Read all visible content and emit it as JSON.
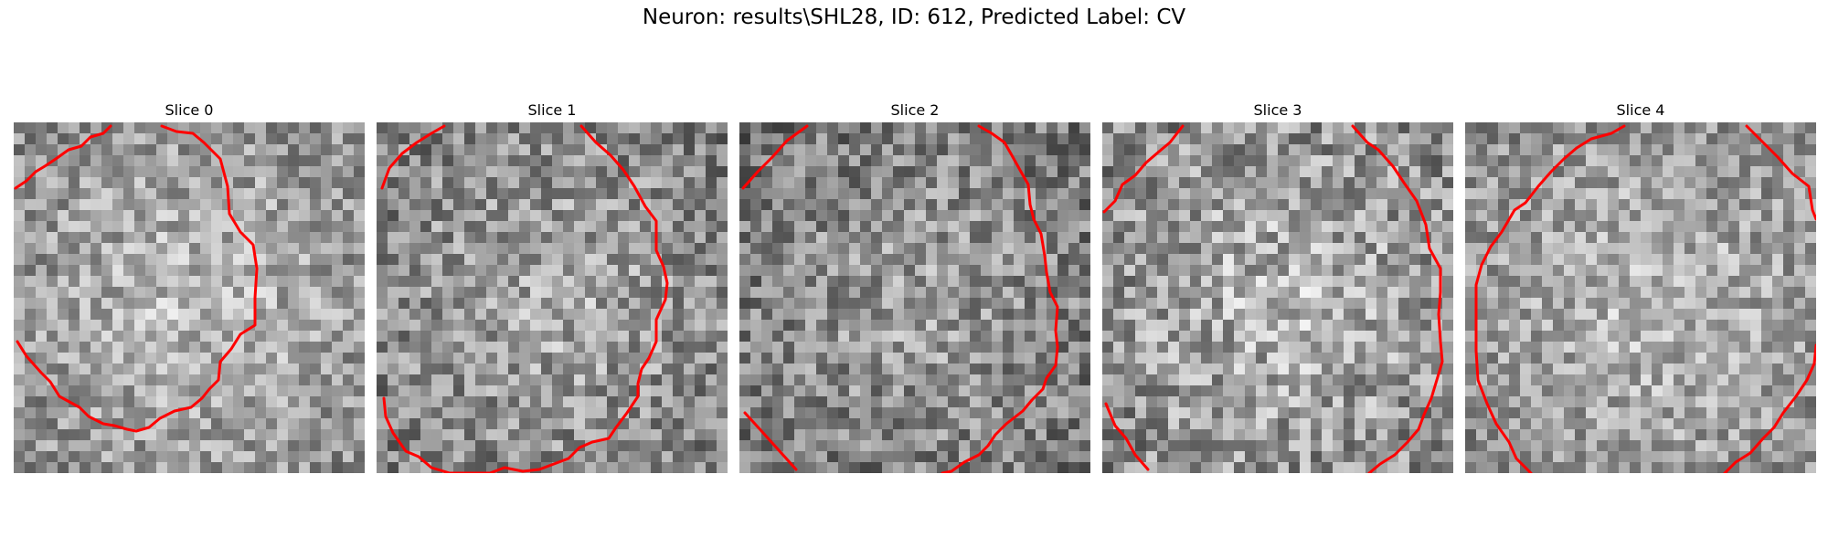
{
  "figure": {
    "title": "Neuron: results\\SHL28, ID: 612, Predicted Label: CV"
  },
  "panels": [
    {
      "title": "Slice 0",
      "brightness": 0.62,
      "contrast": 0.22,
      "seed": 11
    },
    {
      "title": "Slice 1",
      "brightness": 0.56,
      "contrast": 0.24,
      "seed": 23
    },
    {
      "title": "Slice 2",
      "brightness": 0.52,
      "contrast": 0.24,
      "seed": 37
    },
    {
      "title": "Slice 3",
      "brightness": 0.6,
      "contrast": 0.26,
      "seed": 41
    },
    {
      "title": "Slice 4",
      "brightness": 0.62,
      "contrast": 0.22,
      "seed": 53
    }
  ],
  "colors": {
    "contour": "#ff0000",
    "background": "#ffffff"
  }
}
